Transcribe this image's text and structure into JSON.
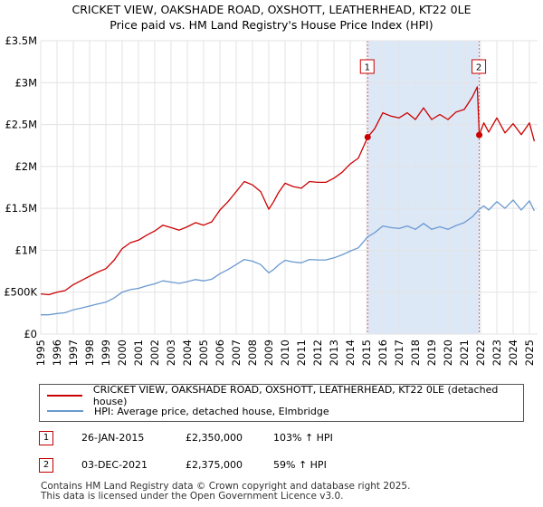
{
  "title_line1": "CRICKET VIEW, OAKSHADE ROAD, OXSHOTT, LEATHERHEAD, KT22 0LE",
  "title_line2": "Price paid vs. HM Land Registry's House Price Index (HPI)",
  "colors": {
    "property": "#cc0000",
    "hpi": "#6a99d0",
    "shade": "#dde8f7",
    "grid": "#e3e3e3",
    "vline": "#e06060"
  },
  "chart_data": {
    "type": "line",
    "xlim": [
      1995,
      2025.5
    ],
    "ylim": [
      0,
      3500000
    ],
    "ytick_values": [
      0,
      500000,
      1000000,
      1500000,
      2000000,
      2500000,
      3000000,
      3500000
    ],
    "ytick_labels": [
      "£0",
      "£500K",
      "£1M",
      "£1.5M",
      "£2M",
      "£2.5M",
      "£3M",
      "£3.5M"
    ],
    "xtick_labels": [
      "1995",
      "1996",
      "1997",
      "1998",
      "1999",
      "2000",
      "2001",
      "2002",
      "2003",
      "2004",
      "2005",
      "2006",
      "2007",
      "2008",
      "2009",
      "2010",
      "2011",
      "2012",
      "2013",
      "2014",
      "2015",
      "2016",
      "2017",
      "2018",
      "2019",
      "2020",
      "2021",
      "2022",
      "2023",
      "2024",
      "2025"
    ],
    "series": [
      {
        "name": "CRICKET VIEW, OAKSHADE ROAD, OXSHOTT, LEATHERHEAD, KT22 0LE (detached house)",
        "x": [
          1995.0,
          1995.5,
          1996.0,
          1996.5,
          1997.0,
          1997.5,
          1998.0,
          1998.5,
          1999.0,
          1999.5,
          2000.0,
          2000.5,
          2001.0,
          2001.5,
          2002.0,
          2002.5,
          2003.0,
          2003.5,
          2004.0,
          2004.5,
          2005.0,
          2005.5,
          2006.0,
          2006.5,
          2007.0,
          2007.5,
          2008.0,
          2008.5,
          2009.0,
          2009.3,
          2009.6,
          2010.0,
          2010.5,
          2011.0,
          2011.5,
          2012.0,
          2012.5,
          2013.0,
          2013.5,
          2014.0,
          2014.5,
          2015.07,
          2015.5,
          2016.0,
          2016.5,
          2017.0,
          2017.5,
          2018.0,
          2018.5,
          2019.0,
          2019.5,
          2020.0,
          2020.5,
          2021.0,
          2021.5,
          2021.8,
          2021.92,
          2022.2,
          2022.5,
          2023.0,
          2023.5,
          2024.0,
          2024.5,
          2025.0,
          2025.3
        ],
        "y": [
          480000,
          470000,
          500000,
          520000,
          590000,
          640000,
          690000,
          740000,
          780000,
          880000,
          1020000,
          1090000,
          1120000,
          1180000,
          1230000,
          1300000,
          1270000,
          1240000,
          1280000,
          1330000,
          1300000,
          1340000,
          1480000,
          1580000,
          1700000,
          1820000,
          1780000,
          1700000,
          1490000,
          1580000,
          1690000,
          1800000,
          1760000,
          1740000,
          1820000,
          1810000,
          1810000,
          1860000,
          1930000,
          2030000,
          2100000,
          2350000,
          2450000,
          2640000,
          2600000,
          2580000,
          2640000,
          2560000,
          2700000,
          2560000,
          2620000,
          2560000,
          2650000,
          2680000,
          2830000,
          2950000,
          2375000,
          2520000,
          2410000,
          2580000,
          2400000,
          2510000,
          2380000,
          2520000,
          2300000
        ]
      },
      {
        "name": "HPI: Average price, detached house, Elmbridge",
        "x": [
          1995.0,
          1995.5,
          1996.0,
          1996.5,
          1997.0,
          1997.5,
          1998.0,
          1998.5,
          1999.0,
          1999.5,
          2000.0,
          2000.5,
          2001.0,
          2001.5,
          2002.0,
          2002.5,
          2003.0,
          2003.5,
          2004.0,
          2004.5,
          2005.0,
          2005.5,
          2006.0,
          2006.5,
          2007.0,
          2007.5,
          2008.0,
          2008.5,
          2009.0,
          2009.3,
          2009.6,
          2010.0,
          2010.5,
          2011.0,
          2011.5,
          2012.0,
          2012.5,
          2013.0,
          2013.5,
          2014.0,
          2014.5,
          2015.07,
          2015.5,
          2016.0,
          2016.5,
          2017.0,
          2017.5,
          2018.0,
          2018.5,
          2019.0,
          2019.5,
          2020.0,
          2020.5,
          2021.0,
          2021.5,
          2021.92,
          2022.2,
          2022.5,
          2023.0,
          2023.5,
          2024.0,
          2024.5,
          2025.0,
          2025.3
        ],
        "y": [
          230000,
          230000,
          245000,
          255000,
          290000,
          310000,
          335000,
          360000,
          380000,
          430000,
          500000,
          530000,
          545000,
          575000,
          600000,
          635000,
          620000,
          605000,
          625000,
          650000,
          635000,
          655000,
          720000,
          770000,
          830000,
          890000,
          870000,
          830000,
          730000,
          770000,
          825000,
          880000,
          860000,
          850000,
          890000,
          885000,
          885000,
          910000,
          945000,
          990000,
          1030000,
          1160000,
          1210000,
          1290000,
          1270000,
          1260000,
          1290000,
          1250000,
          1320000,
          1250000,
          1280000,
          1250000,
          1295000,
          1330000,
          1400000,
          1490000,
          1530000,
          1480000,
          1580000,
          1500000,
          1600000,
          1480000,
          1590000,
          1470000
        ]
      }
    ],
    "markers": [
      {
        "label": "1",
        "x": 2015.07,
        "y": 2350000
      },
      {
        "label": "2",
        "x": 2021.92,
        "y": 2375000
      }
    ]
  },
  "legend": {
    "property_label": "CRICKET VIEW, OAKSHADE ROAD, OXSHOTT, LEATHERHEAD, KT22 0LE (detached house)",
    "hpi_label": "HPI: Average price, detached house, Elmbridge"
  },
  "sales": [
    {
      "num": "1",
      "date": "26-JAN-2015",
      "price": "£2,350,000",
      "hpi": "103% ↑ HPI"
    },
    {
      "num": "2",
      "date": "03-DEC-2021",
      "price": "£2,375,000",
      "hpi": "59% ↑ HPI"
    }
  ],
  "footer_line1": "Contains HM Land Registry data © Crown copyright and database right 2025.",
  "footer_line2": "This data is licensed under the Open Government Licence v3.0."
}
